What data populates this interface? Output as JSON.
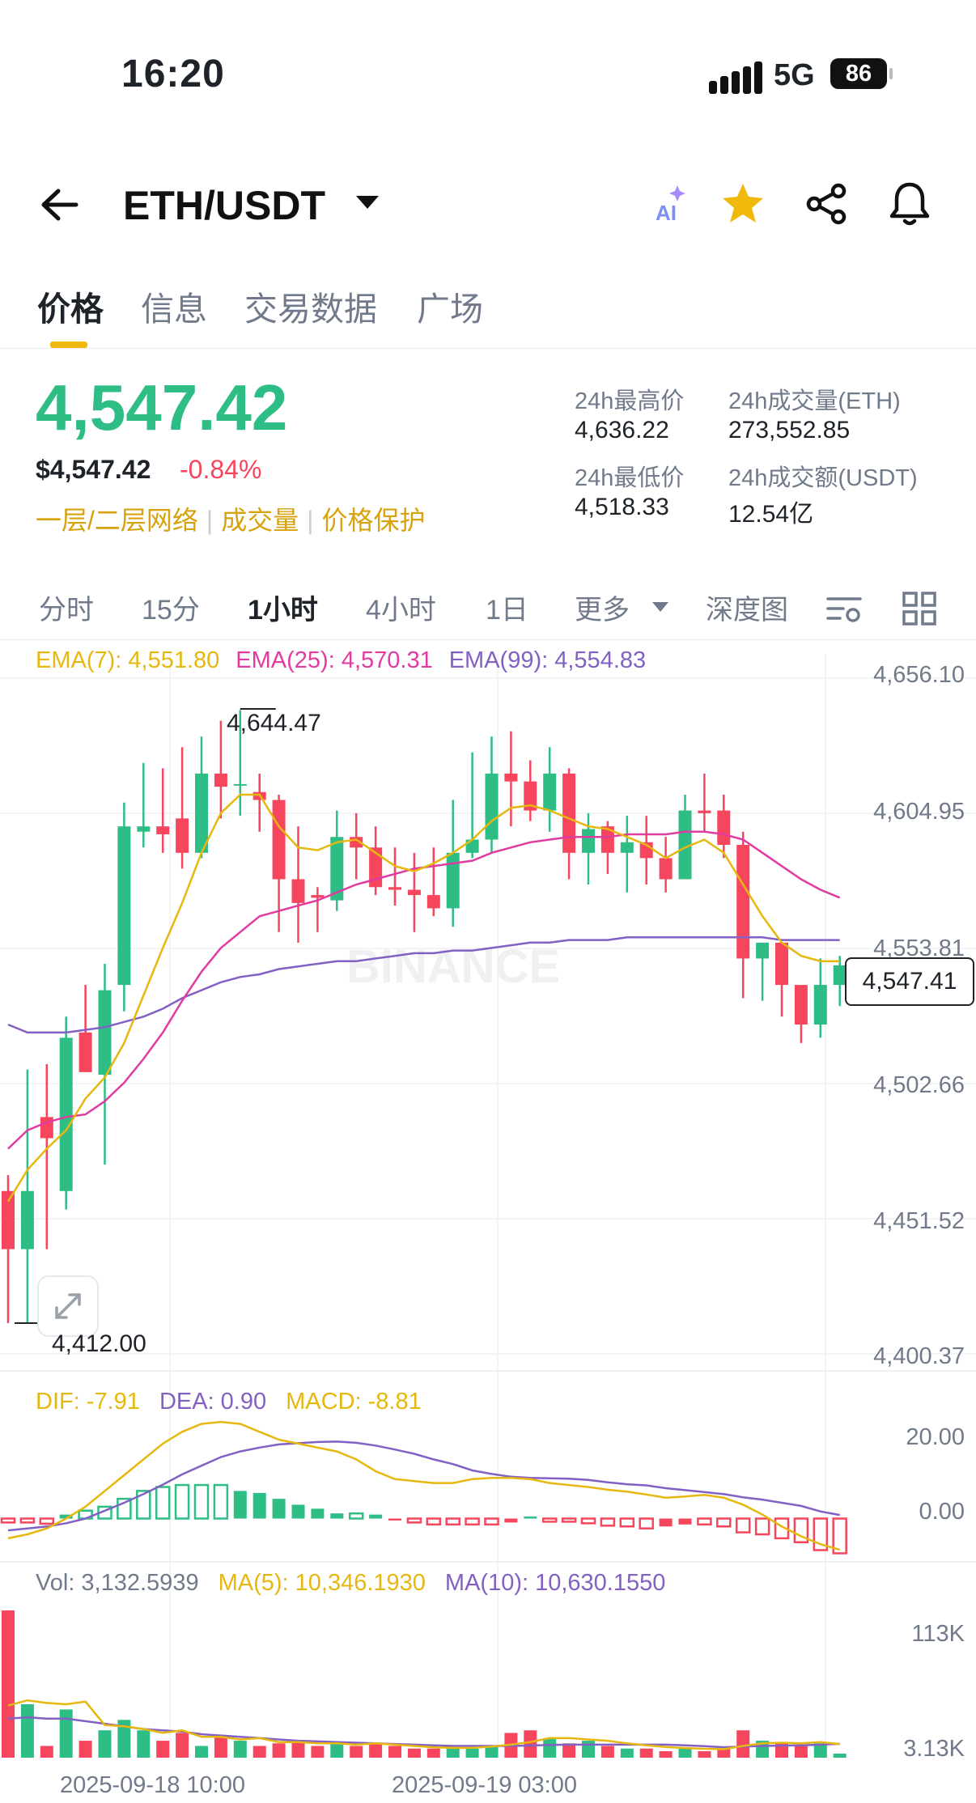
{
  "status": {
    "time": "16:20",
    "network": "5G",
    "battery": "86"
  },
  "header": {
    "pair": "ETH/USDT",
    "ai_label": "AI"
  },
  "tabs": [
    {
      "label": "价格",
      "active": true
    },
    {
      "label": "信息",
      "active": false
    },
    {
      "label": "交易数据",
      "active": false
    },
    {
      "label": "广场",
      "active": false
    }
  ],
  "price": {
    "last": "4,547.42",
    "usd": "$4,547.42",
    "change": "-0.84%",
    "links": [
      "一层/二层网络",
      "成交量",
      "价格保护"
    ]
  },
  "stats": {
    "high_label": "24h最高价",
    "high": "4,636.22",
    "vol_eth_label": "24h成交量(ETH)",
    "vol_eth": "273,552.85",
    "low_label": "24h最低价",
    "low": "4,518.33",
    "vol_usdt_label": "24h成交额(USDT)",
    "vol_usdt": "12.54亿"
  },
  "intervals": [
    {
      "label": "分时",
      "active": false
    },
    {
      "label": "15分",
      "active": false
    },
    {
      "label": "1小时",
      "active": true
    },
    {
      "label": "4小时",
      "active": false
    },
    {
      "label": "1日",
      "active": false
    },
    {
      "label": "更多",
      "active": false
    },
    {
      "label": "深度图",
      "active": false
    }
  ],
  "colors": {
    "up": "#2ebd85",
    "down": "#f6465d",
    "ema7": "#e6b80f",
    "ema25": "#e13ba2",
    "ema99": "#8360c3",
    "accent": "#f0b90b"
  },
  "chart_data": [
    {
      "type": "candlestick",
      "watermark": "BINANCE",
      "ema_labels": {
        "ema7": "EMA(7): 4,551.80",
        "ema25": "EMA(25): 4,570.31",
        "ema99": "EMA(99): 4,554.83"
      },
      "y_ticks": [
        "4,656.10",
        "4,604.95",
        "4,553.81",
        "4,502.66",
        "4,451.52",
        "4,400.37"
      ],
      "ylim": [
        4400.37,
        4656.1
      ],
      "x_ticks": [
        "2025-09-18 10:00",
        "2025-09-19 03:00"
      ],
      "high_marker": "4,644.47",
      "low_marker": "4,412.00",
      "last_price_tag": "4,547.41",
      "candles": [
        [
          4462,
          4440,
          4468,
          4412
        ],
        [
          4440,
          4462,
          4508,
          4412
        ],
        [
          4490,
          4482,
          4510,
          4440
        ],
        [
          4462,
          4520,
          4528,
          4455
        ],
        [
          4522,
          4507,
          4540,
          4507
        ],
        [
          4506,
          4538,
          4548,
          4472
        ],
        [
          4540,
          4600,
          4609,
          4530
        ],
        [
          4598,
          4600,
          4624,
          4592
        ],
        [
          4600,
          4597,
          4622,
          4590
        ],
        [
          4603,
          4590,
          4630,
          4584
        ],
        [
          4590,
          4620,
          4634,
          4588
        ],
        [
          4620,
          4615,
          4640,
          4603
        ],
        [
          4616,
          4616,
          4644,
          4604
        ],
        [
          4613,
          4610,
          4620,
          4598
        ],
        [
          4610,
          4580,
          4612,
          4560
        ],
        [
          4580,
          4571,
          4600,
          4556
        ],
        [
          4574,
          4573,
          4577,
          4560
        ],
        [
          4572,
          4596,
          4606,
          4568
        ],
        [
          4596,
          4592,
          4605,
          4580
        ],
        [
          4592,
          4577,
          4600,
          4574
        ],
        [
          4577,
          4576,
          4592,
          4570
        ],
        [
          4576,
          4574,
          4590,
          4560
        ],
        [
          4574,
          4569,
          4592,
          4566
        ],
        [
          4569,
          4590,
          4610,
          4562
        ],
        [
          4590,
          4595,
          4628,
          4588
        ],
        [
          4595,
          4620,
          4634,
          4590
        ],
        [
          4620,
          4617,
          4636,
          4600
        ],
        [
          4617,
          4606,
          4625,
          4602
        ],
        [
          4606,
          4620,
          4630,
          4598
        ],
        [
          4620,
          4590,
          4622,
          4580
        ],
        [
          4590,
          4599,
          4605,
          4578
        ],
        [
          4600,
          4590,
          4602,
          4582
        ],
        [
          4590,
          4594,
          4604,
          4575
        ],
        [
          4594,
          4588,
          4604,
          4578
        ],
        [
          4588,
          4580,
          4596,
          4575
        ],
        [
          4580,
          4606,
          4612,
          4580
        ],
        [
          4606,
          4605,
          4620,
          4598
        ],
        [
          4606,
          4593,
          4612,
          4588
        ],
        [
          4593,
          4550,
          4598,
          4535
        ],
        [
          4550,
          4556,
          4556,
          4534
        ],
        [
          4556,
          4540,
          4554,
          4528
        ],
        [
          4540,
          4525,
          4538,
          4518
        ],
        [
          4525,
          4540,
          4550,
          4520
        ],
        [
          4540,
          4547.41,
          4551,
          4532
        ]
      ],
      "ema7": [
        4458,
        4470,
        4478,
        4485,
        4497,
        4505,
        4518,
        4536,
        4554,
        4571,
        4590,
        4605,
        4612,
        4612,
        4600,
        4592,
        4591,
        4594,
        4595,
        4590,
        4585,
        4583,
        4586,
        4590,
        4595,
        4602,
        4607,
        4608,
        4606,
        4603,
        4600,
        4599,
        4596,
        4593,
        4588,
        4592,
        4595,
        4590,
        4578,
        4566,
        4556,
        4551,
        4549,
        4549
      ],
      "ema25": [
        4478,
        4485,
        4488,
        4490,
        4491,
        4496,
        4503,
        4512,
        4522,
        4534,
        4545,
        4554,
        4560,
        4566,
        4568,
        4570,
        4572,
        4575,
        4578,
        4580,
        4582,
        4584,
        4585,
        4586,
        4587,
        4590,
        4592,
        4594,
        4595,
        4596,
        4596,
        4596,
        4597,
        4597,
        4597,
        4598,
        4598,
        4597,
        4595,
        4590,
        4585,
        4580,
        4576,
        4573
      ],
      "ema99": [
        4525,
        4522,
        4522,
        4522,
        4523,
        4524,
        4526,
        4528,
        4531,
        4535,
        4538,
        4541,
        4543,
        4544,
        4546,
        4547,
        4548,
        4549,
        4549,
        4550,
        4551,
        4552,
        4552,
        4553,
        4553,
        4554,
        4555,
        4556,
        4556,
        4557,
        4557,
        4557,
        4558,
        4558,
        4558,
        4558,
        4558,
        4558,
        4558,
        4558,
        4557,
        4557,
        4557,
        4557
      ]
    },
    {
      "type": "bar",
      "name": "MACD",
      "labels": {
        "dif": "DIF: -7.91",
        "dea": "DEA: 0.90",
        "macd": "MACD: -8.81"
      },
      "y_ticks": [
        "20.00",
        "0.00"
      ],
      "ylim": [
        -12,
        28
      ],
      "hist": [
        -1,
        -1,
        -1.3,
        1,
        2,
        3,
        5,
        7,
        8,
        8.5,
        8.5,
        8.5,
        7,
        6.5,
        5,
        3.5,
        2.5,
        1.3,
        1.3,
        1,
        -0.5,
        -1,
        -1.5,
        -1.5,
        -1.5,
        -1.5,
        -1,
        0.5,
        -0.8,
        -0.8,
        -1.2,
        -1.8,
        -2,
        -2.5,
        -2,
        -1.5,
        -1.5,
        -2,
        -3.5,
        -4,
        -5,
        -6,
        -8,
        -8.81
      ],
      "dif": [
        -5,
        -4,
        -2.5,
        0,
        3,
        7,
        11,
        15,
        19,
        22,
        24,
        24.5,
        24,
        22,
        20,
        19,
        18,
        17,
        15,
        12,
        10,
        9.5,
        9,
        9,
        10,
        10.3,
        10.3,
        10,
        9,
        8.5,
        8,
        7.3,
        6.8,
        6.1,
        5.3,
        5.6,
        6,
        5.3,
        3.5,
        1,
        -2,
        -4.5,
        -6.5,
        -7.91
      ],
      "dea": [
        -3,
        -2.5,
        -2,
        -1.2,
        0,
        2,
        4,
        6.2,
        8.6,
        11.2,
        13.4,
        15.6,
        17,
        18,
        18.8,
        19.1,
        19.4,
        19.5,
        19.2,
        18.5,
        17.5,
        16.4,
        15,
        13.8,
        12.2,
        11.3,
        10.6,
        10.3,
        10.2,
        10.1,
        9.8,
        9.2,
        8.7,
        8.4,
        7.7,
        7.2,
        6.7,
        6.2,
        5.4,
        4.8,
        4,
        3.2,
        1.8,
        0.9
      ]
    },
    {
      "type": "bar",
      "name": "Volume",
      "labels": {
        "vol": "Vol: 3,132.5939",
        "ma5": "MA(5): 10,346.1930",
        "ma10": "MA(10): 10,630.1550"
      },
      "y_ticks": [
        "113K",
        "3.13K"
      ],
      "ylim": [
        0,
        113000
      ],
      "values": [
        113000,
        41000,
        9000,
        37000,
        13000,
        21000,
        29000,
        21000,
        13000,
        19000,
        9000,
        17000,
        13000,
        9000,
        11000,
        13000,
        9000,
        11000,
        9000,
        11000,
        9000,
        7000,
        7000,
        7000,
        7000,
        9000,
        19000,
        21000,
        15000,
        11000,
        13000,
        9000,
        7000,
        7000,
        5000,
        7000,
        5000,
        7000,
        21000,
        13000,
        11000,
        9000,
        11000,
        3132.5939
      ],
      "ma5": [
        40000,
        44000,
        42000,
        41000,
        43000,
        25000,
        24000,
        22000,
        19000,
        21000,
        16000,
        16000,
        14000,
        15000,
        12000,
        12000,
        11000,
        11000,
        10000,
        11000,
        10000,
        9000,
        8000,
        7500,
        7500,
        8500,
        10000,
        12000,
        15000,
        15000,
        14000,
        13000,
        11000,
        9500,
        8200,
        7400,
        6800,
        6500,
        9000,
        11000,
        11500,
        11000,
        12000,
        10346.193
      ],
      "ma10": [
        30000,
        31000,
        30000,
        30000,
        28000,
        26000,
        24000,
        22000,
        21000,
        20000,
        18000,
        17000,
        16000,
        15000,
        14000,
        13000,
        12500,
        12000,
        11500,
        11000,
        10500,
        10000,
        9500,
        9000,
        9000,
        9000,
        9000,
        9300,
        9800,
        10000,
        10000,
        10000,
        10000,
        10000,
        10000,
        9500,
        8800,
        8000,
        8500,
        9000,
        9300,
        9500,
        10000,
        10630.155
      ]
    }
  ]
}
